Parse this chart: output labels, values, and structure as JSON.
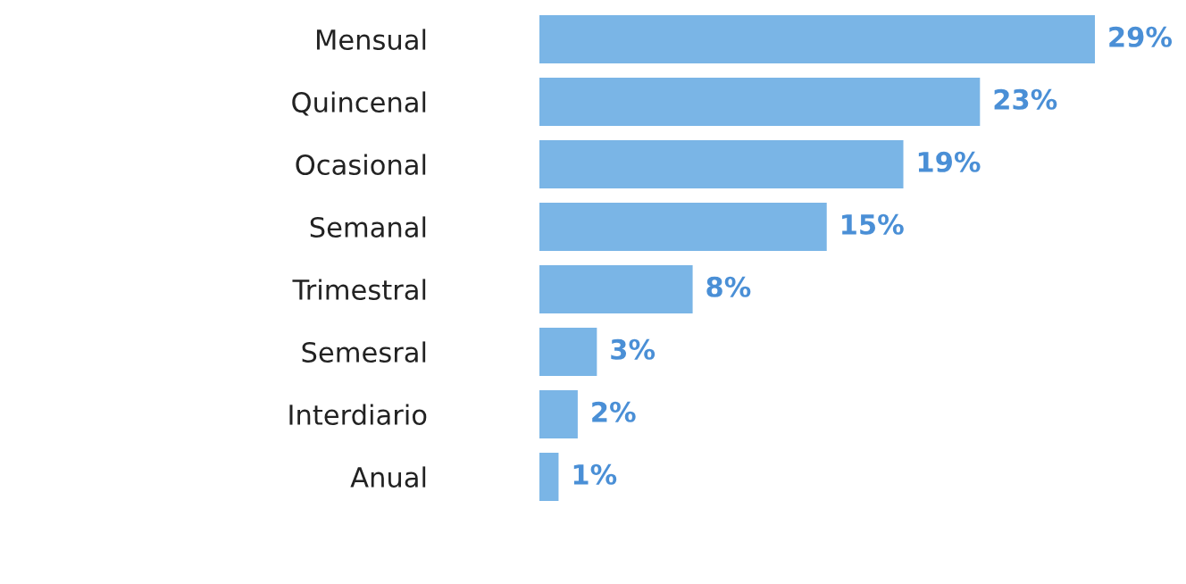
{
  "chart_data": {
    "type": "bar",
    "orientation": "horizontal",
    "categories": [
      "Mensual",
      "Quincenal",
      "Ocasional",
      "Semanal",
      "Trimestral",
      "Semesral",
      "Interdiario",
      "Anual"
    ],
    "values": [
      29,
      23,
      19,
      15,
      8,
      3,
      2,
      1
    ],
    "value_labels": [
      "29%",
      "23%",
      "19%",
      "15%",
      "8%",
      "3%",
      "2%",
      "1%"
    ],
    "color": "#7ab5e6",
    "grid": false,
    "legend": false
  }
}
